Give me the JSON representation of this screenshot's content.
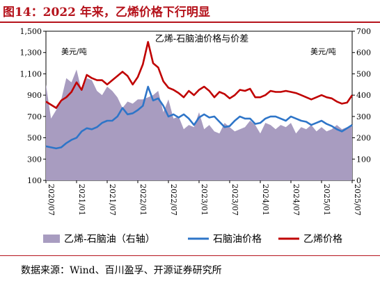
{
  "header": {
    "title": "图14：2022 年来，乙烯价格下行明显"
  },
  "footer": {
    "source": "数据来源：Wind、百川盈孚、开源证券研究所"
  },
  "chart_data": {
    "type": "line",
    "title": "乙烯-石脑油价格与价差",
    "y_left_unit": "美元/吨",
    "y_right_unit": "美元/吨",
    "y_left": {
      "min": 100,
      "max": 1500,
      "ticks": [
        100,
        300,
        500,
        700,
        900,
        1100,
        1300,
        1500
      ],
      "tick_labels": [
        "100",
        "300",
        "500",
        "700",
        "900",
        "1,100",
        "1,300",
        "1,500"
      ]
    },
    "y_right": {
      "min": 0,
      "max": 700,
      "ticks": [
        0,
        100,
        200,
        300,
        400,
        500,
        600,
        700
      ],
      "tick_labels": [
        "0",
        "100",
        "200",
        "300",
        "400",
        "500",
        "600",
        "700"
      ]
    },
    "x_range": [
      "2020/07",
      "2025/07"
    ],
    "x_ticks": [
      "2020/07",
      "2021/01",
      "2021/07",
      "2022/01",
      "2022/07",
      "2023/01",
      "2023/07",
      "2024/01",
      "2024/07",
      "2025/01",
      "2025/07"
    ],
    "grid": false,
    "legend": "bottom",
    "series": [
      {
        "name": "乙烯-石脑油（右轴）",
        "type": "area",
        "axis": "right",
        "color": "#a89cc0",
        "x": [
          "2020/07",
          "2020/08",
          "2020/09",
          "2020/10",
          "2020/11",
          "2020/12",
          "2021/01",
          "2021/02",
          "2021/03",
          "2021/04",
          "2021/05",
          "2021/06",
          "2021/07",
          "2021/08",
          "2021/09",
          "2021/10",
          "2021/11",
          "2021/12",
          "2022/01",
          "2022/02",
          "2022/03",
          "2022/04",
          "2022/05",
          "2022/06",
          "2022/07",
          "2022/08",
          "2022/09",
          "2022/10",
          "2022/11",
          "2022/12",
          "2023/01",
          "2023/02",
          "2023/03",
          "2023/04",
          "2023/05",
          "2023/06",
          "2023/07",
          "2023/08",
          "2023/09",
          "2023/10",
          "2023/11",
          "2023/12",
          "2024/01",
          "2024/02",
          "2024/03",
          "2024/04",
          "2024/05",
          "2024/06",
          "2024/07",
          "2024/08",
          "2024/09",
          "2024/10",
          "2024/11",
          "2024/12",
          "2025/01",
          "2025/02",
          "2025/03",
          "2025/04",
          "2025/05",
          "2025/06",
          "2025/07"
        ],
        "values": [
          450,
          290,
          330,
          380,
          480,
          460,
          520,
          420,
          480,
          470,
          420,
          400,
          440,
          420,
          390,
          340,
          370,
          360,
          380,
          380,
          390,
          400,
          420,
          320,
          380,
          290,
          300,
          240,
          260,
          250,
          320,
          240,
          260,
          230,
          220,
          270,
          250,
          230,
          240,
          250,
          280,
          260,
          220,
          270,
          260,
          240,
          260,
          250,
          270,
          220,
          250,
          240,
          260,
          230,
          250,
          230,
          240,
          260,
          240,
          250,
          260
        ]
      },
      {
        "name": "石脑油价格",
        "type": "line",
        "axis": "left",
        "color": "#2e75c8",
        "x": [
          "2020/07",
          "2020/08",
          "2020/09",
          "2020/10",
          "2020/11",
          "2020/12",
          "2021/01",
          "2021/02",
          "2021/03",
          "2021/04",
          "2021/05",
          "2021/06",
          "2021/07",
          "2021/08",
          "2021/09",
          "2021/10",
          "2021/11",
          "2021/12",
          "2022/01",
          "2022/02",
          "2022/03",
          "2022/04",
          "2022/05",
          "2022/06",
          "2022/07",
          "2022/08",
          "2022/09",
          "2022/10",
          "2022/11",
          "2022/12",
          "2023/01",
          "2023/02",
          "2023/03",
          "2023/04",
          "2023/05",
          "2023/06",
          "2023/07",
          "2023/08",
          "2023/09",
          "2023/10",
          "2023/11",
          "2023/12",
          "2024/01",
          "2024/02",
          "2024/03",
          "2024/04",
          "2024/05",
          "2024/06",
          "2024/07",
          "2024/08",
          "2024/09",
          "2024/10",
          "2024/11",
          "2024/12",
          "2025/01",
          "2025/02",
          "2025/03",
          "2025/04",
          "2025/05",
          "2025/06",
          "2025/07"
        ],
        "values": [
          420,
          410,
          400,
          410,
          450,
          480,
          500,
          560,
          590,
          580,
          600,
          640,
          660,
          660,
          700,
          780,
          720,
          730,
          760,
          800,
          980,
          850,
          870,
          800,
          700,
          720,
          690,
          720,
          680,
          620,
          690,
          720,
          690,
          700,
          650,
          600,
          610,
          660,
          700,
          680,
          680,
          630,
          640,
          680,
          700,
          700,
          680,
          660,
          700,
          680,
          660,
          650,
          620,
          640,
          660,
          630,
          610,
          580,
          560,
          590,
          620
        ]
      },
      {
        "name": "乙烯价格",
        "type": "line",
        "axis": "left",
        "color": "#c00000",
        "x": [
          "2020/07",
          "2020/08",
          "2020/09",
          "2020/10",
          "2020/11",
          "2020/12",
          "2021/01",
          "2021/02",
          "2021/03",
          "2021/04",
          "2021/05",
          "2021/06",
          "2021/07",
          "2021/08",
          "2021/09",
          "2021/10",
          "2021/11",
          "2021/12",
          "2022/01",
          "2022/02",
          "2022/03",
          "2022/04",
          "2022/05",
          "2022/06",
          "2022/07",
          "2022/08",
          "2022/09",
          "2022/10",
          "2022/11",
          "2022/12",
          "2023/01",
          "2023/02",
          "2023/03",
          "2023/04",
          "2023/05",
          "2023/06",
          "2023/07",
          "2023/08",
          "2023/09",
          "2023/10",
          "2023/11",
          "2023/12",
          "2024/01",
          "2024/02",
          "2024/03",
          "2024/04",
          "2024/05",
          "2024/06",
          "2024/07",
          "2024/08",
          "2024/09",
          "2024/10",
          "2024/11",
          "2024/12",
          "2025/01",
          "2025/02",
          "2025/03",
          "2025/04",
          "2025/05",
          "2025/06",
          "2025/07"
        ],
        "values": [
          840,
          810,
          780,
          850,
          880,
          930,
          1020,
          950,
          1090,
          1060,
          1040,
          1040,
          1000,
          1040,
          1080,
          1120,
          1080,
          1000,
          1070,
          1190,
          1400,
          1200,
          1160,
          1030,
          970,
          950,
          920,
          880,
          940,
          900,
          950,
          980,
          940,
          880,
          930,
          910,
          870,
          900,
          950,
          940,
          960,
          880,
          880,
          900,
          940,
          930,
          930,
          940,
          930,
          920,
          900,
          880,
          860,
          880,
          900,
          880,
          870,
          840,
          820,
          830,
          900
        ]
      }
    ]
  }
}
